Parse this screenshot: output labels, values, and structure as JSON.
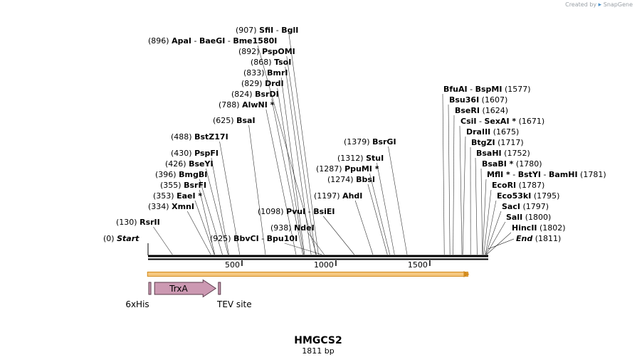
{
  "credit": {
    "prefix": "Created by",
    "brand": "SnapGene"
  },
  "sequence": {
    "name": "HMGCS2",
    "length": 1811,
    "length_label": "1811 bp"
  },
  "scale": {
    "ticks": [
      {
        "value": 500,
        "label": "500"
      },
      {
        "value": 1000,
        "label": "1000"
      },
      {
        "value": 1500,
        "label": "1500"
      }
    ]
  },
  "sites": [
    {
      "id": "start",
      "pos": 0,
      "pos_label": "(0)",
      "names": [
        "Start"
      ],
      "italic": true
    },
    {
      "id": "rsrii",
      "pos": 130,
      "pos_label": "(130)",
      "names": [
        "RsrII"
      ]
    },
    {
      "id": "xmni",
      "pos": 334,
      "pos_label": "(334)",
      "names": [
        "XmnI"
      ]
    },
    {
      "id": "eaei",
      "pos": 353,
      "pos_label": "(353)",
      "names": [
        "EaeI *"
      ]
    },
    {
      "id": "bsrfi",
      "pos": 355,
      "pos_label": "(355)",
      "names": [
        "BsrFI"
      ]
    },
    {
      "id": "bmgbi",
      "pos": 396,
      "pos_label": "(396)",
      "names": [
        "BmgBI"
      ]
    },
    {
      "id": "bseyi",
      "pos": 426,
      "pos_label": "(426)",
      "names": [
        "BseYI"
      ]
    },
    {
      "id": "pspfi",
      "pos": 430,
      "pos_label": "(430)",
      "names": [
        "PspFI"
      ]
    },
    {
      "id": "bstz17i",
      "pos": 488,
      "pos_label": "(488)",
      "names": [
        "BstZ17I"
      ]
    },
    {
      "id": "bsai",
      "pos": 625,
      "pos_label": "(625)",
      "names": [
        "BsaI"
      ]
    },
    {
      "id": "alwni",
      "pos": 788,
      "pos_label": "(788)",
      "names": [
        "AlwNI *"
      ]
    },
    {
      "id": "bsrdi",
      "pos": 824,
      "pos_label": "(824)",
      "names": [
        "BsrDI"
      ]
    },
    {
      "id": "drdi",
      "pos": 829,
      "pos_label": "(829)",
      "names": [
        "DrdI"
      ]
    },
    {
      "id": "bmri",
      "pos": 833,
      "pos_label": "(833)",
      "names": [
        "BmrI"
      ]
    },
    {
      "id": "tsoi",
      "pos": 868,
      "pos_label": "(868)",
      "names": [
        "TsoI"
      ]
    },
    {
      "id": "pspomi",
      "pos": 892,
      "pos_label": "(892)",
      "names": [
        "PspOMI"
      ]
    },
    {
      "id": "apai",
      "pos": 896,
      "pos_label": "(896)",
      "names": [
        "ApaI",
        "BaeGI",
        "Bme1580I"
      ]
    },
    {
      "id": "sfii",
      "pos": 907,
      "pos_label": "(907)",
      "names": [
        "SfiI",
        "BglI"
      ]
    },
    {
      "id": "bbvci",
      "pos": 925,
      "pos_label": "(925)",
      "names": [
        "BbvCI",
        "Bpu10I"
      ]
    },
    {
      "id": "ndei",
      "pos": 938,
      "pos_label": "(938)",
      "names": [
        "NdeI"
      ]
    },
    {
      "id": "pvui",
      "pos": 1098,
      "pos_label": "(1098)",
      "names": [
        "PvuI",
        "BsiEI"
      ]
    },
    {
      "id": "ahdi",
      "pos": 1197,
      "pos_label": "(1197)",
      "names": [
        "AhdI"
      ]
    },
    {
      "id": "bbsi",
      "pos": 1274,
      "pos_label": "(1274)",
      "names": [
        "BbsI"
      ]
    },
    {
      "id": "ppumi",
      "pos": 1287,
      "pos_label": "(1287)",
      "names": [
        "PpuMI *"
      ]
    },
    {
      "id": "stui",
      "pos": 1312,
      "pos_label": "(1312)",
      "names": [
        "StuI"
      ]
    },
    {
      "id": "bsrgi",
      "pos": 1379,
      "pos_label": "(1379)",
      "names": [
        "BsrGI"
      ]
    },
    {
      "id": "bfuai",
      "pos": 1577,
      "pos_label": "(1577)",
      "names": [
        "BfuAI",
        "BspMI"
      ]
    },
    {
      "id": "bsu36i",
      "pos": 1607,
      "pos_label": "(1607)",
      "names": [
        "Bsu36I"
      ]
    },
    {
      "id": "bseri",
      "pos": 1624,
      "pos_label": "(1624)",
      "names": [
        "BseRI"
      ]
    },
    {
      "id": "csii",
      "pos": 1671,
      "pos_label": "(1671)",
      "names": [
        "CsiI",
        "SexAI *"
      ]
    },
    {
      "id": "draiii",
      "pos": 1675,
      "pos_label": "(1675)",
      "names": [
        "DraIII"
      ]
    },
    {
      "id": "btgzi",
      "pos": 1717,
      "pos_label": "(1717)",
      "names": [
        "BtgZI"
      ]
    },
    {
      "id": "bsahi",
      "pos": 1752,
      "pos_label": "(1752)",
      "names": [
        "BsaHI"
      ]
    },
    {
      "id": "bsabi",
      "pos": 1780,
      "pos_label": "(1780)",
      "names": [
        "BsaBI *"
      ]
    },
    {
      "id": "mfli",
      "pos": 1781,
      "pos_label": "(1781)",
      "names": [
        "MflI *",
        "BstYI",
        "BamHI"
      ]
    },
    {
      "id": "ecori",
      "pos": 1787,
      "pos_label": "(1787)",
      "names": [
        "EcoRI"
      ]
    },
    {
      "id": "eco53ki",
      "pos": 1795,
      "pos_label": "(1795)",
      "names": [
        "Eco53kI"
      ]
    },
    {
      "id": "saci",
      "pos": 1797,
      "pos_label": "(1797)",
      "names": [
        "SacI"
      ]
    },
    {
      "id": "sali",
      "pos": 1800,
      "pos_label": "(1800)",
      "names": [
        "SalI"
      ]
    },
    {
      "id": "hincii",
      "pos": 1802,
      "pos_label": "(1802)",
      "names": [
        "HincII"
      ]
    },
    {
      "id": "end",
      "pos": 1811,
      "pos_label": "(1811)",
      "names": [
        "End"
      ],
      "italic": true
    }
  ],
  "features": [
    {
      "id": "6xhis",
      "label": "6xHis",
      "start": 1,
      "end": 18,
      "type": "small",
      "color": "#cc99b2"
    },
    {
      "id": "trxa",
      "label": "TrxA",
      "start": 31,
      "end": 357,
      "type": "arrow",
      "color": "#cc99b2"
    },
    {
      "id": "tev",
      "label": "TEV site",
      "start": 370,
      "end": 390,
      "type": "small",
      "color": "#cc99b2"
    }
  ],
  "orf": {
    "start": 1,
    "end": 1756,
    "color": "#f5c77e",
    "stroke": "#d28b1e"
  }
}
